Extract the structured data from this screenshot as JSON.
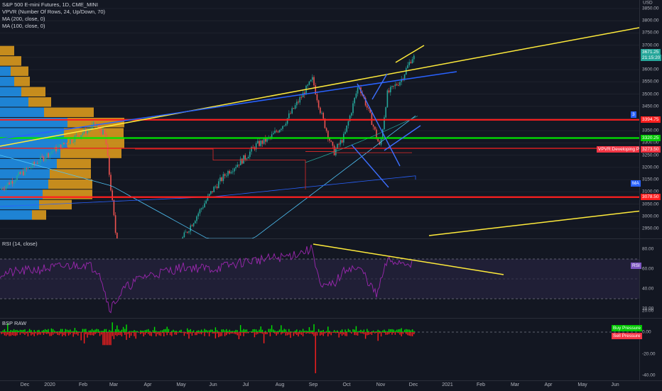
{
  "main": {
    "legend": [
      "S&P 500 E-mini Futures, 1D, CME_MINI",
      "VPVR (Number Of Rows, 24, Up/Down, 70)",
      "MA (200, close, 0)",
      "MA (100, close, 0)"
    ],
    "currency": "USD",
    "price_ticks": [
      "3850.00",
      "3800.00",
      "3750.00",
      "3700.00",
      "3650.00",
      "3600.00",
      "3550.00",
      "3500.00",
      "3450.00",
      "3400.00",
      "3350.00",
      "3300.00",
      "3250.00",
      "3200.00",
      "3150.00",
      "3100.00",
      "3050.00",
      "3000.00",
      "2950.00"
    ],
    "price_badges": {
      "last_price": "3671.25",
      "countdown": "21:15:20",
      "resistance_red": "3394.75",
      "support_green": "3320.25",
      "developing_poc": "3273.50",
      "lower_red": "3078.50",
      "ma_small": "3",
      "ma_label": "MA"
    },
    "developing_poc_label": "VPVR:Developing Poc",
    "colors": {
      "up": "#26a69a",
      "down": "#ef5350",
      "trend_yellow": "#ffeb3b",
      "trend_blue": "#2962ff",
      "red_line": "#ff1f1f",
      "green_line": "#00e600",
      "vp_up": "#2196f3",
      "vp_down": "#e6a11c"
    }
  },
  "rsi": {
    "legend": "RSI (14, close)",
    "ticks": [
      "80.00",
      "60.00",
      "40.00",
      "20.00"
    ],
    "badge": "RSI"
  },
  "bsp": {
    "legend": "BSP RAW",
    "ticks": [
      "20.00",
      "0.00",
      "-20.00",
      "-40.00"
    ],
    "buy_label": "Buy Pressure",
    "sell_label": "Sell Pressure"
  },
  "time_axis": [
    "Dec",
    "2020",
    "Feb",
    "Mar",
    "Apr",
    "May",
    "Jun",
    "Jul",
    "Aug",
    "Sep",
    "Oct",
    "Nov",
    "Dec",
    "2021",
    "Feb",
    "Mar",
    "Apr",
    "May",
    "Jun"
  ]
}
